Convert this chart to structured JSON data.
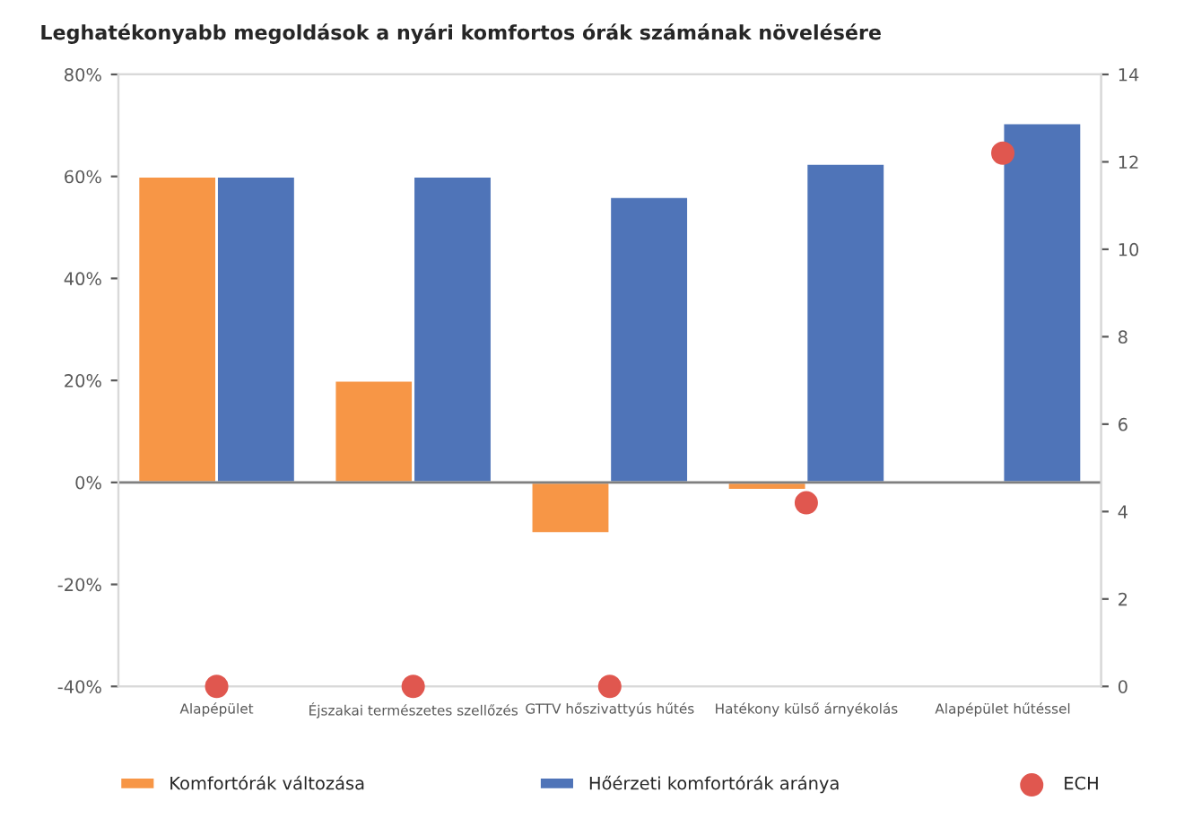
{
  "chart_data": {
    "type": "bar",
    "title": "Leghatékonyabb megoldások a nyári komfortos órák számának növelésére",
    "categories": [
      "Alapépület",
      "Éjszakai természetes szellőzés",
      "GTTV hőszivattyús hűtés",
      "Hatékony külső árnyékolás",
      "Alapépület hűtéssel"
    ],
    "series": [
      {
        "name": "Komfortórák változása",
        "color": "#f79646",
        "values": [
          60,
          20,
          -10,
          -1.5,
          null
        ]
      },
      {
        "name": "Hőérzeti komfortórák aránya",
        "color": "#4f74b8",
        "values": [
          60,
          60,
          56,
          62.5,
          70.5
        ]
      },
      {
        "name": "ECH",
        "type": "scatter",
        "axis": "y2",
        "color": "#e0574f",
        "values": [
          0,
          0,
          0,
          4.2,
          12.2
        ]
      }
    ],
    "ylim": [
      -40,
      80
    ],
    "yticks": [
      {
        "value": -40,
        "label": "-40%"
      },
      {
        "value": -20,
        "label": "-20%"
      },
      {
        "value": 0,
        "label": "0%"
      },
      {
        "value": 20,
        "label": "20%"
      },
      {
        "value": 40,
        "label": "40%"
      },
      {
        "value": 60,
        "label": "60%"
      },
      {
        "value": 80,
        "label": "80%"
      }
    ],
    "y2lim": [
      0,
      14
    ],
    "y2ticks": [
      0,
      2,
      4,
      6,
      8,
      10,
      12,
      14
    ],
    "ref_lines": [
      {
        "axis": "y",
        "value": 0,
        "color": "#7f7f7f"
      }
    ],
    "legend": "bottom",
    "marker": "circle"
  }
}
